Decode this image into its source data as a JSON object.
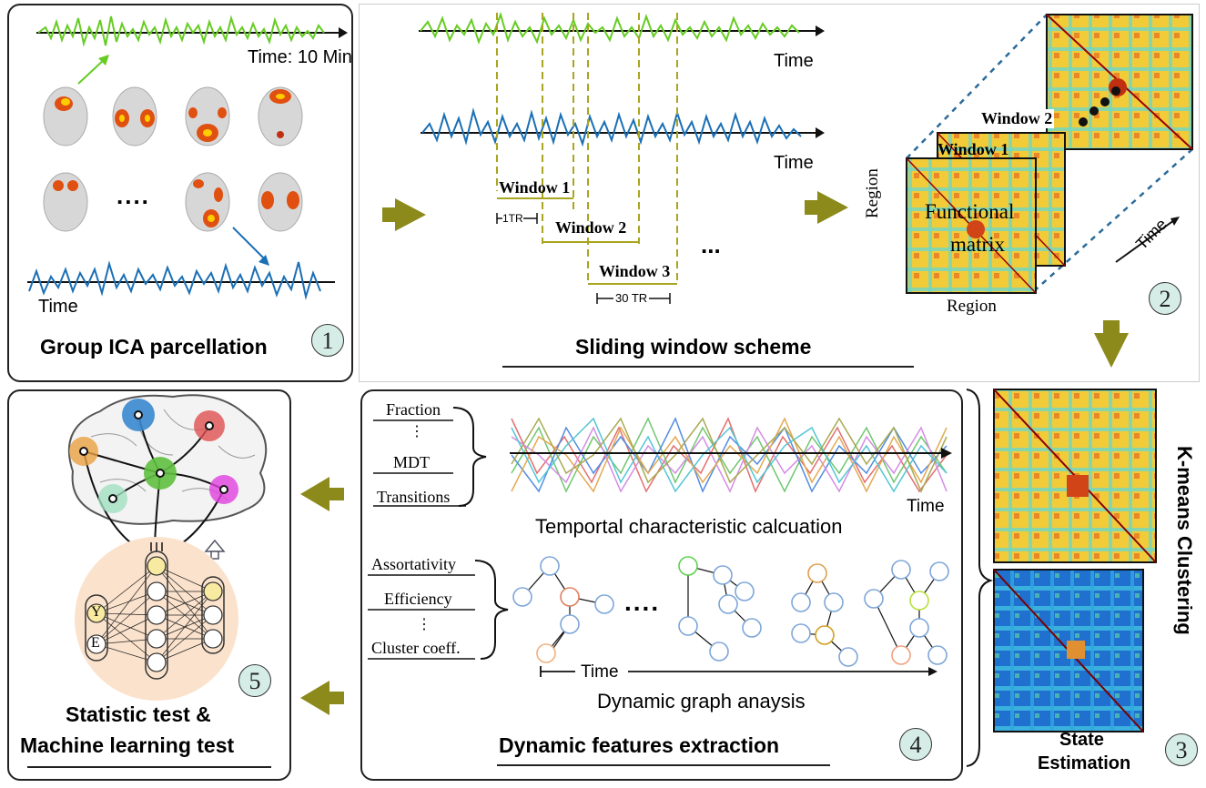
{
  "panel1": {
    "time_label": "Time: 10 Min",
    "ellipsis": "....",
    "signal_label": "Time",
    "title": "Group ICA parcellation",
    "step": "1"
  },
  "panel_sliding": {
    "time_label_top": "Time",
    "time_label_bottom": "Time",
    "window1": "Window 1",
    "window2": "Window 2",
    "window3": "Window 3",
    "tr1": "1TR",
    "tr30": "30 TR",
    "ellipsis": "...",
    "title": "Sliding window scheme"
  },
  "panel_matrix": {
    "window2": "Window 2",
    "window1": "Window 1",
    "center_line1": "Functional",
    "center_line2": "matrix",
    "region_x": "Region",
    "region_y": "Region",
    "time": "Time",
    "step": "2"
  },
  "panel_kmeans": {
    "vertical_label": "K-means Clustering",
    "state_line1": "State",
    "state_line2": "Estimation",
    "step": "3"
  },
  "panel_features": {
    "temporal_metrics": [
      "Fraction",
      "⋮",
      "MDT",
      "Transitions"
    ],
    "temporal_time": "Time",
    "temporal_title": "Temportal characteristic calcuation",
    "graph_metrics": [
      "Assortativity",
      "Efficiency",
      "⋮",
      "Cluster coeff."
    ],
    "graph_ellipsis": "....",
    "graph_time": "Time",
    "graph_title": "Dynamic graph anaysis",
    "title": "Dynamic features extraction",
    "step": "4"
  },
  "panel_stats": {
    "node_y": "Y",
    "node_e": "E",
    "title_line1": "Statistic test &",
    "title_line2": "Machine learning test",
    "step": "5"
  },
  "colors": {
    "arrow": "#8b8a1a",
    "green_signal": "#66cc22",
    "blue_signal": "#1a6fb5",
    "window_line": "#a8a520",
    "node_stroke": "#7ea6d8"
  }
}
